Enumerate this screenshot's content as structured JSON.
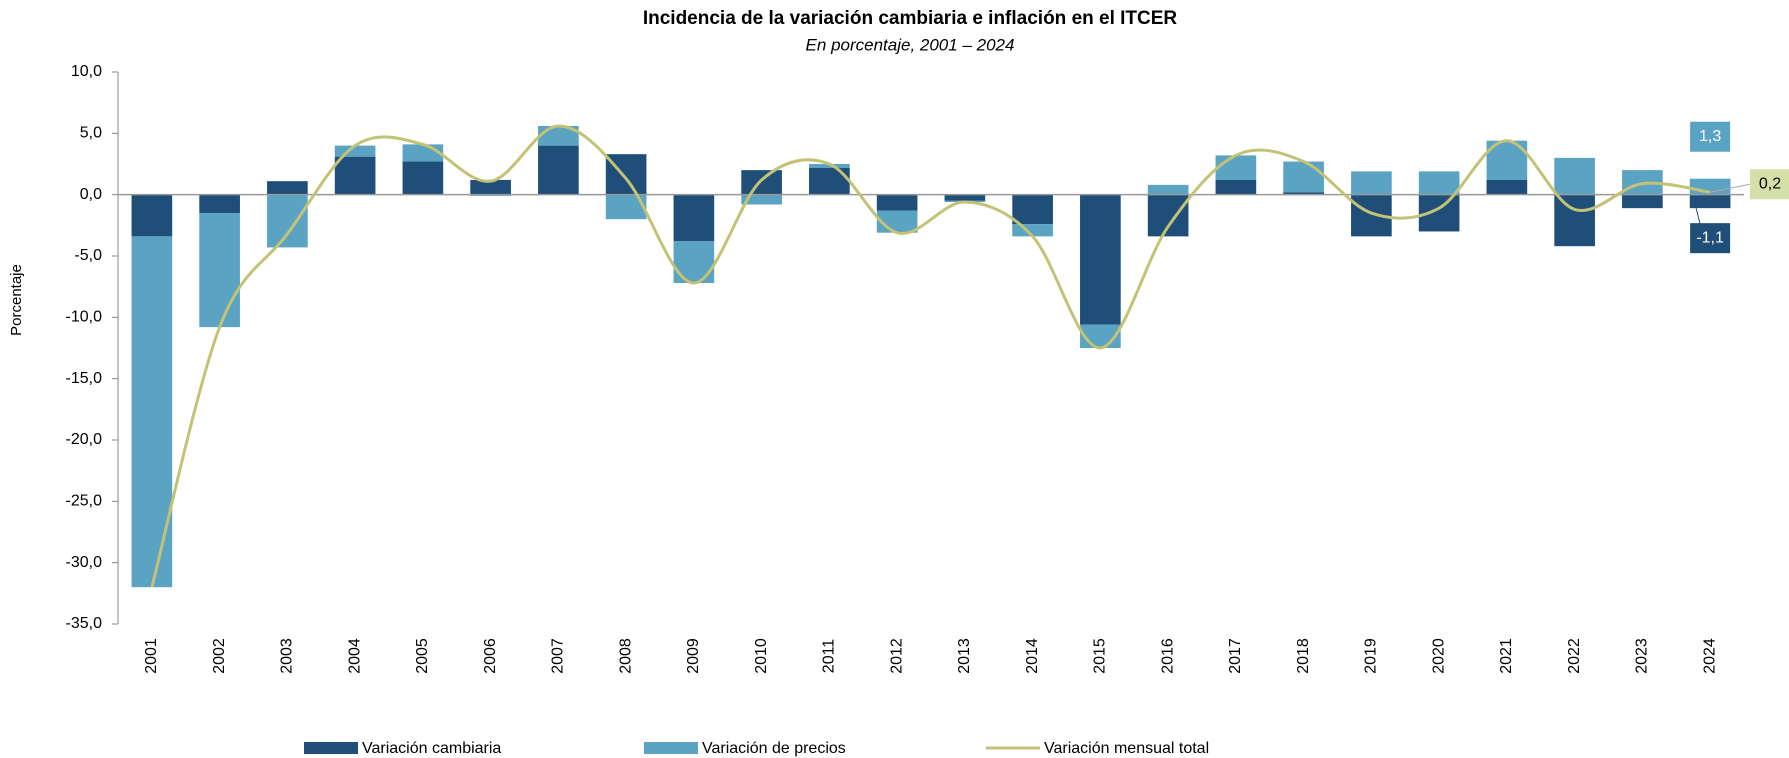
{
  "chart_data": {
    "type": "stacked-bar-line",
    "title": "Incidencia de la variación cambiaria e inflación en el ITCER",
    "subtitle": "En porcentaje, 2001 – 2024",
    "y_label": "Porcentaje",
    "categories": [
      "2001",
      "2002",
      "2003",
      "2004",
      "2005",
      "2006",
      "2007",
      "2008",
      "2009",
      "2010",
      "2011",
      "2012",
      "2013",
      "2014",
      "2015",
      "2016",
      "2017",
      "2018",
      "2019",
      "2020",
      "2021",
      "2022",
      "2023",
      "2024"
    ],
    "series": [
      {
        "name": "Variación cambiaria",
        "color": "#1f4e79",
        "kind": "bar",
        "values": [
          -3.4,
          -1.5,
          1.1,
          3.1,
          2.7,
          1.2,
          4.0,
          3.3,
          -3.8,
          2.0,
          2.2,
          -1.3,
          -0.5,
          -2.4,
          -10.6,
          -3.4,
          1.2,
          0.2,
          -3.4,
          -3.0,
          1.2,
          -4.2,
          -1.1,
          -1.1
        ],
        "value_labels": [
          null,
          null,
          null,
          null,
          null,
          null,
          null,
          null,
          null,
          null,
          null,
          null,
          null,
          null,
          null,
          null,
          null,
          null,
          null,
          null,
          null,
          null,
          null,
          "-1,1"
        ]
      },
      {
        "name": "Variación de precios",
        "color": "#5ba3c3",
        "kind": "bar",
        "values": [
          -28.6,
          -9.3,
          -4.3,
          0.9,
          1.4,
          -0.1,
          1.6,
          -2.0,
          -3.4,
          -0.8,
          0.3,
          -1.8,
          -0.1,
          -1.0,
          -1.9,
          0.8,
          2.0,
          2.5,
          1.9,
          1.9,
          3.2,
          3.0,
          2.0,
          1.3
        ],
        "value_labels": [
          null,
          null,
          null,
          null,
          null,
          null,
          null,
          null,
          null,
          null,
          null,
          null,
          null,
          null,
          null,
          null,
          null,
          null,
          null,
          null,
          null,
          null,
          null,
          "1,3"
        ]
      },
      {
        "name": "Variación mensual total",
        "color": "#c3c275",
        "kind": "line",
        "values": [
          -32.0,
          -10.8,
          -3.2,
          4.0,
          4.1,
          1.1,
          5.6,
          1.3,
          -7.2,
          1.2,
          2.5,
          -3.1,
          -0.6,
          -3.4,
          -12.5,
          -2.6,
          3.2,
          2.7,
          -1.5,
          -1.1,
          4.4,
          -1.2,
          0.9,
          0.2
        ],
        "value_labels": [
          null,
          null,
          null,
          null,
          null,
          null,
          null,
          null,
          null,
          null,
          null,
          null,
          null,
          null,
          null,
          null,
          null,
          null,
          null,
          null,
          null,
          null,
          null,
          "0,2"
        ]
      }
    ],
    "ylim": [
      -35,
      10
    ],
    "yticks": [
      {
        "value": 10,
        "label": "10,0"
      },
      {
        "value": 5,
        "label": "5,0"
      },
      {
        "value": 0,
        "label": "0,0"
      },
      {
        "value": -5,
        "label": "-5,0"
      },
      {
        "value": -10,
        "label": "-10,0"
      },
      {
        "value": -15,
        "label": "-15,0"
      },
      {
        "value": -20,
        "label": "-20,0"
      },
      {
        "value": -25,
        "label": "-25,0"
      },
      {
        "value": -30,
        "label": "-30,0"
      },
      {
        "value": -35,
        "label": "-35,0"
      }
    ],
    "legend": "bottom"
  }
}
